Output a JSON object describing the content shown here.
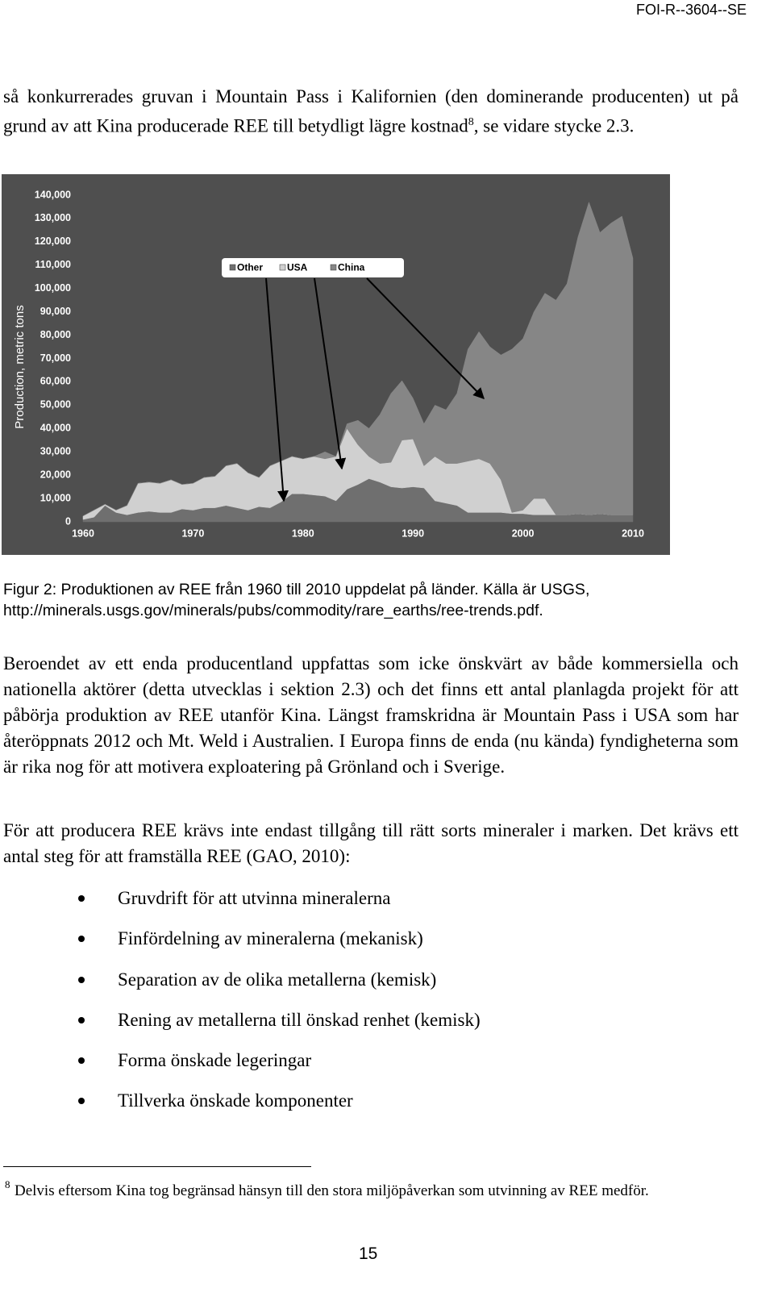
{
  "header": {
    "report_id": "FOI-R--3604--SE"
  },
  "intro": {
    "before": "så konkurrerades gruvan i Mountain Pass i Kalifornien (den dominerande producenten) ut på grund av att Kina producerade REE till betydligt lägre kostnad",
    "footnote_ref": "8",
    "after": ", se vidare stycke 2.3."
  },
  "chart_data": {
    "type": "stacked-area",
    "y_label": "Production, metric tons",
    "x": [
      1960,
      1961,
      1962,
      1963,
      1964,
      1965,
      1966,
      1967,
      1968,
      1969,
      1970,
      1971,
      1972,
      1973,
      1974,
      1975,
      1976,
      1977,
      1978,
      1979,
      1980,
      1981,
      1982,
      1983,
      1984,
      1985,
      1986,
      1987,
      1988,
      1989,
      1990,
      1991,
      1992,
      1993,
      1994,
      1995,
      1996,
      1997,
      1998,
      1999,
      2000,
      2001,
      2002,
      2003,
      2004,
      2005,
      2006,
      2007,
      2008,
      2009,
      2010
    ],
    "series": [
      {
        "name": "Other",
        "color": "#6f6f6f",
        "values": [
          1000,
          2000,
          7000,
          4000,
          3000,
          4000,
          4500,
          4000,
          4000,
          5500,
          5000,
          6000,
          6000,
          7000,
          6000,
          5000,
          6500,
          6000,
          8500,
          12000,
          12000,
          11500,
          11000,
          9000,
          14000,
          16000,
          18500,
          17000,
          15000,
          14500,
          15000,
          14500,
          9000,
          8000,
          7000,
          4000,
          4000,
          4000,
          4000,
          3500,
          3500,
          3000,
          3000,
          3000,
          3000,
          3500,
          3000,
          3500,
          3000,
          3000,
          3000
        ]
      },
      {
        "name": "USA",
        "color": "#d0d0d0",
        "values": [
          1500,
          3000,
          500,
          1000,
          4000,
          12500,
          12500,
          12500,
          14000,
          10500,
          11500,
          13000,
          13500,
          17000,
          19000,
          16000,
          12500,
          18000,
          17500,
          16000,
          15000,
          16500,
          16000,
          19000,
          26000,
          17000,
          9500,
          8000,
          10500,
          20500,
          20500,
          9500,
          19000,
          17000,
          18000,
          22000,
          23000,
          21000,
          14000,
          500,
          1500,
          7000,
          7000,
          0,
          0,
          0,
          0,
          0,
          0,
          0,
          0
        ]
      },
      {
        "name": "China",
        "color": "#868686",
        "values": [
          0,
          0,
          0,
          0,
          0,
          0,
          0,
          0,
          0,
          0,
          0,
          0,
          0,
          0,
          0,
          0,
          0,
          0,
          0,
          0,
          0,
          0,
          3000,
          0,
          2000,
          10500,
          12000,
          21000,
          29500,
          25500,
          17500,
          18000,
          22000,
          23000,
          30000,
          48000,
          54500,
          50000,
          53500,
          70000,
          73500,
          80000,
          88000,
          92000,
          99000,
          118500,
          134000,
          120500,
          125000,
          128000,
          110000
        ]
      }
    ],
    "xlim": [
      1959.5,
      2011
    ],
    "xticks": [
      1960,
      1970,
      1980,
      1990,
      2000,
      2010
    ],
    "ylim": [
      0,
      140000
    ],
    "yticks": [
      0,
      {
        "value": 10000,
        "label": "10,000"
      },
      {
        "value": 20000,
        "label": "20,000"
      },
      {
        "value": 30000,
        "label": "30,000"
      },
      {
        "value": 40000,
        "label": "40,000"
      },
      {
        "value": 50000,
        "label": "50,000"
      },
      {
        "value": 60000,
        "label": "60,000"
      },
      {
        "value": 70000,
        "label": "70,000"
      },
      {
        "value": 80000,
        "label": "80,000"
      },
      {
        "value": 90000,
        "label": "90,000"
      },
      {
        "value": 100000,
        "label": "100,000"
      },
      {
        "value": 110000,
        "label": "110,000"
      },
      {
        "value": 120000,
        "label": "120,000"
      },
      {
        "value": 130000,
        "label": "130,000"
      },
      {
        "value": 140000,
        "label": "140,000"
      }
    ],
    "stacked": true,
    "grid": false,
    "background": "#4f4f4f"
  },
  "caption": "Figur 2: Produktionen av REE från 1960 till 2010 uppdelat på länder. Källa är USGS, http://minerals.usgs.gov/minerals/pubs/commodity/rare_earths/ree-trends.pdf.",
  "paragraphs": [
    "Beroendet av ett enda producentland uppfattas som icke önskvärt av både kommersiella och nationella aktörer (detta utvecklas i sektion 2.3) och det finns ett antal planlagda projekt för att påbörja produktion av REE utanför Kina. Längst framskridna är Mountain Pass i USA som har återöppnats 2012 och Mt. Weld i Australien. I Europa finns de enda (nu kända) fyndigheterna som är rika nog för att motivera exploatering på Grönland och i Sverige.",
    "För att producera REE krävs inte endast tillgång till rätt sorts mineraler i marken. Det krävs ett antal steg för att framställa REE (GAO, 2010):"
  ],
  "bullets": [
    "Gruvdrift för att utvinna mineralerna",
    "Finfördelning av mineralerna (mekanisk)",
    "Separation av de olika metallerna (kemisk)",
    "Rening av metallerna till önskad renhet (kemisk)",
    "Forma önskade legeringar",
    "Tillverka önskade komponenter"
  ],
  "footnote": {
    "marker": "8",
    "text": "Delvis eftersom Kina tog begränsad hänsyn till den stora miljöpåverkan som utvinning av REE medför."
  },
  "page_number": "15"
}
